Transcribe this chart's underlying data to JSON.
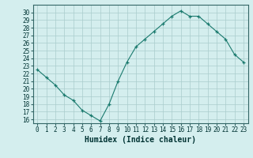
{
  "x": [
    0,
    1,
    2,
    3,
    4,
    5,
    6,
    7,
    8,
    9,
    10,
    11,
    12,
    13,
    14,
    15,
    16,
    17,
    18,
    19,
    20,
    21,
    22,
    23
  ],
  "y": [
    22.5,
    21.5,
    20.5,
    19.2,
    18.5,
    17.2,
    16.5,
    15.8,
    18.0,
    21.0,
    23.5,
    25.5,
    26.5,
    27.5,
    28.5,
    29.5,
    30.2,
    29.5,
    29.5,
    28.5,
    27.5,
    26.5,
    24.5,
    23.5
  ],
  "xlabel": "Humidex (Indice chaleur)",
  "xlim": [
    -0.5,
    23.5
  ],
  "ylim": [
    15.5,
    31
  ],
  "yticks": [
    16,
    17,
    18,
    19,
    20,
    21,
    22,
    23,
    24,
    25,
    26,
    27,
    28,
    29,
    30
  ],
  "xticks": [
    0,
    1,
    2,
    3,
    4,
    5,
    6,
    7,
    8,
    9,
    10,
    11,
    12,
    13,
    14,
    15,
    16,
    17,
    18,
    19,
    20,
    21,
    22,
    23
  ],
  "line_color": "#1a7a6e",
  "marker": "+",
  "bg_color": "#d4eeee",
  "grid_color": "#aacccc",
  "label_fontsize": 7,
  "tick_fontsize": 5.5
}
